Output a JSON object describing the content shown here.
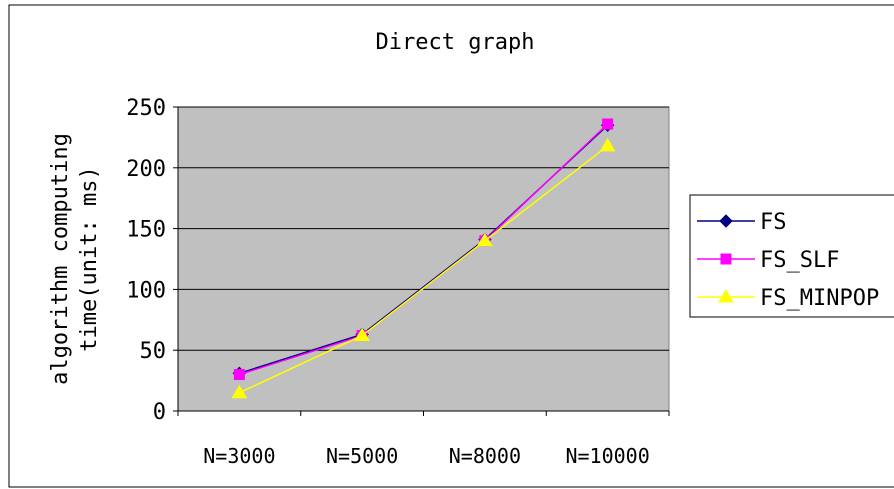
{
  "chart_data": {
    "type": "line",
    "title": "Direct graph",
    "xlabel": "",
    "ylabel_lines": [
      "algorithm computing",
      "time(unit: ms)"
    ],
    "categories": [
      "N=3000",
      "N=5000",
      "N=8000",
      "N=10000"
    ],
    "ylim": [
      0,
      250
    ],
    "yticks": [
      0,
      50,
      100,
      150,
      200,
      250
    ],
    "grid": true,
    "legend": "right",
    "series": [
      {
        "name": "FS",
        "values": [
          31,
          63,
          141,
          235
        ],
        "color": "#000080",
        "marker": "diamond"
      },
      {
        "name": "FS_SLF",
        "values": [
          30,
          62,
          140,
          236
        ],
        "color": "#ff00ff",
        "marker": "square"
      },
      {
        "name": "FS_MINPOP",
        "values": [
          15,
          62,
          140,
          218
        ],
        "color": "#ffff00",
        "marker": "triangle"
      }
    ],
    "plot_background": "#c0c0c0"
  }
}
